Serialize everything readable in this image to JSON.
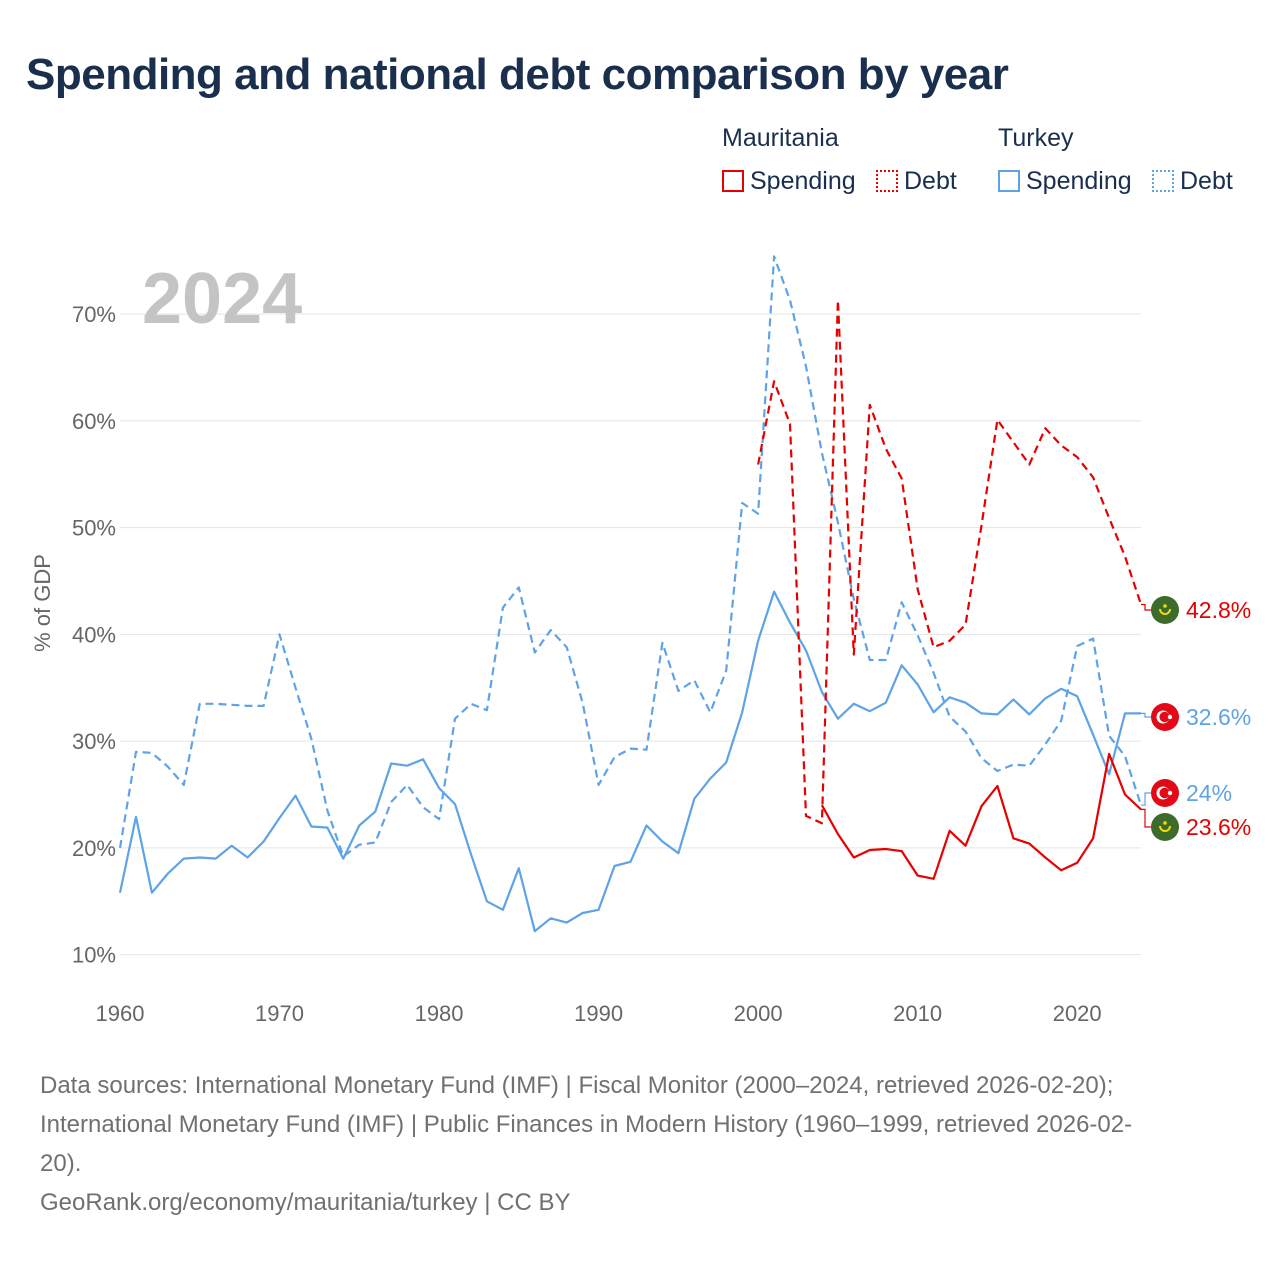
{
  "title": "Spending and national debt comparison by year",
  "legend": {
    "groups": [
      {
        "name": "Mauritania",
        "color": "#e60000",
        "items": [
          {
            "label": "Spending",
            "style": "solid"
          },
          {
            "label": "Debt",
            "style": "dotted"
          }
        ]
      },
      {
        "name": "Turkey",
        "color": "#5ea3e6",
        "items": [
          {
            "label": "Spending",
            "style": "solid"
          },
          {
            "label": "Debt",
            "style": "dotted"
          }
        ]
      }
    ]
  },
  "chart_data": {
    "type": "line",
    "year_label": "2024",
    "ylabel": "% of GDP",
    "xlim": [
      1960,
      2024
    ],
    "ylim": [
      8,
      76
    ],
    "y_ticks": [
      10,
      20,
      30,
      40,
      50,
      60,
      70
    ],
    "y_tick_labels": [
      "10%",
      "20%",
      "30%",
      "40%",
      "50%",
      "60%",
      "70%"
    ],
    "x_ticks": [
      1960,
      1970,
      1980,
      1990,
      2000,
      2010,
      2020
    ],
    "x_tick_labels": [
      "1960",
      "1970",
      "1980",
      "1990",
      "2000",
      "2010",
      "2020"
    ],
    "series": [
      {
        "name": "Turkey Debt",
        "country": "Turkey",
        "kind": "debt",
        "color": "#5ea3e6",
        "dash": "8,5",
        "start_year": 1960,
        "values": [
          20.0,
          29.0,
          28.9,
          27.6,
          25.9,
          33.5,
          33.5,
          33.4,
          33.3,
          33.3,
          40.0,
          35.0,
          30.2,
          23.5,
          19.2,
          20.3,
          20.5,
          24.3,
          25.9,
          23.8,
          22.7,
          32.1,
          33.5,
          32.9,
          42.5,
          44.4,
          38.3,
          40.4,
          38.8,
          33.6,
          25.9,
          28.5,
          29.3,
          29.2,
          39.2,
          34.7,
          35.7,
          32.7,
          36.6,
          52.3,
          51.3,
          75.4,
          71.3,
          65.1,
          57.0,
          50.5,
          43.3,
          37.6,
          37.6,
          43.0,
          39.9,
          36.4,
          32.3,
          30.9,
          28.4,
          27.2,
          27.8,
          27.7,
          29.7,
          31.9,
          38.9,
          39.6,
          30.5,
          28.6,
          24.0
        ]
      },
      {
        "name": "Turkey Spending",
        "country": "Turkey",
        "kind": "spending",
        "color": "#5ea3e6",
        "dash": "",
        "start_year": 1960,
        "values": [
          15.8,
          22.9,
          15.8,
          17.6,
          19.0,
          19.1,
          19.0,
          20.2,
          19.1,
          20.6,
          22.8,
          24.9,
          22.0,
          21.9,
          19.0,
          22.1,
          23.4,
          27.9,
          27.7,
          28.3,
          25.6,
          24.1,
          19.4,
          15.0,
          14.2,
          18.1,
          12.2,
          13.4,
          13.0,
          13.9,
          14.2,
          18.3,
          18.7,
          22.1,
          20.6,
          19.5,
          24.6,
          26.5,
          28.0,
          32.7,
          39.4,
          44.0,
          41.1,
          38.5,
          34.6,
          32.1,
          33.5,
          32.8,
          33.6,
          37.1,
          35.3,
          32.7,
          34.1,
          33.6,
          32.6,
          32.5,
          33.9,
          32.5,
          34.0,
          34.9,
          34.2,
          30.6,
          26.9,
          32.6,
          32.6
        ]
      },
      {
        "name": "Mauritania Debt",
        "country": "Mauritania",
        "kind": "debt",
        "color": "#e60000",
        "dash": "8,5",
        "start_year": 2000,
        "values": [
          55.9,
          63.7,
          59.7,
          23.0,
          22.3,
          71.3,
          38.1,
          61.5,
          57.4,
          54.6,
          44.2,
          38.8,
          39.4,
          40.9,
          50.2,
          60.1,
          58.0,
          55.9,
          59.3,
          57.7,
          56.6,
          54.7,
          50.9,
          47.3,
          42.8
        ]
      },
      {
        "name": "Mauritania Spending",
        "country": "Mauritania",
        "kind": "spending",
        "color": "#e60000",
        "dash": "",
        "start_year": 2004,
        "values": [
          24.0,
          21.3,
          19.1,
          19.8,
          19.9,
          19.7,
          17.4,
          17.1,
          21.6,
          20.2,
          23.9,
          25.8,
          20.9,
          20.4,
          19.1,
          17.9,
          18.6,
          20.9,
          28.8,
          25.0,
          23.6
        ]
      }
    ],
    "end_labels": [
      {
        "text": "42.8%",
        "value": 42.8,
        "color": "#e60000",
        "flag": "mauritania-flag-icon"
      },
      {
        "text": "32.6%",
        "value": 32.6,
        "color": "#5ea3e6",
        "flag": "turkey-flag-icon"
      },
      {
        "text": "24%",
        "value": 24.0,
        "color": "#5ea3e6",
        "flag": "turkey-flag-icon"
      },
      {
        "text": "23.6%",
        "value": 23.6,
        "color": "#e60000",
        "flag": "mauritania-flag-icon"
      }
    ]
  },
  "footer": {
    "sources_line1": "Data sources: International Monetary Fund (IMF) | Fiscal Monitor (2000–2024, retrieved 2026-02-20);",
    "sources_line2": "International Monetary Fund (IMF) | Public Finances in Modern History (1960–1999, retrieved 2026-02-",
    "sources_line3": "20).",
    "credit": "GeoRank.org/economy/mauritania/turkey | CC BY"
  }
}
